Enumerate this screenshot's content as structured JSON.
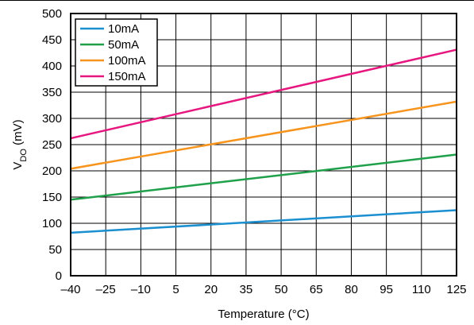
{
  "chart_data": {
    "type": "line",
    "xlabel": "Temperature (°C)",
    "ylabel_main": "V",
    "ylabel_sub": "DO",
    "ylabel_unit": " (mV)",
    "x_ticks": [
      "–40",
      "–25",
      "–10",
      "5",
      "20",
      "35",
      "50",
      "65",
      "80",
      "95",
      "110",
      "125"
    ],
    "y_ticks": [
      "0",
      "50",
      "100",
      "150",
      "200",
      "250",
      "300",
      "350",
      "400",
      "450",
      "500"
    ],
    "xlim": [
      -40,
      125
    ],
    "ylim": [
      0,
      500
    ],
    "grid": true,
    "legend_position": "top-left",
    "series": [
      {
        "name": "10mA",
        "color": "#1b8fd0",
        "x": [
          -40,
          125
        ],
        "y": [
          82,
          125
        ]
      },
      {
        "name": "50mA",
        "color": "#1fa04a",
        "x": [
          -40,
          125
        ],
        "y": [
          145,
          231
        ]
      },
      {
        "name": "100mA",
        "color": "#f7941d",
        "x": [
          -40,
          125
        ],
        "y": [
          204,
          332
        ]
      },
      {
        "name": "150mA",
        "color": "#e6177f",
        "x": [
          -40,
          125
        ],
        "y": [
          262,
          431
        ]
      }
    ]
  }
}
